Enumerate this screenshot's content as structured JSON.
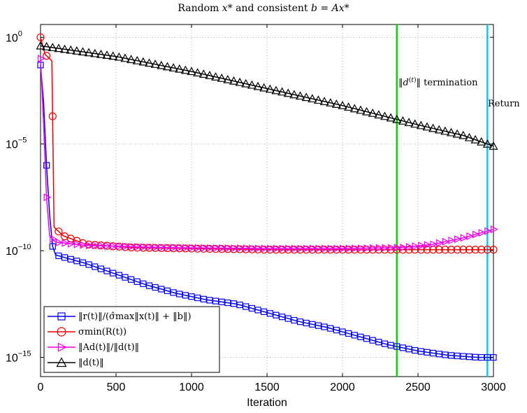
{
  "chart_data": {
    "type": "line",
    "title": "Random x* and consistent b = Ax*",
    "xlabel": "Iteration",
    "ylabel": "",
    "xlim": [
      0,
      3000
    ],
    "ylim_log10": [
      -15.9,
      0.6
    ],
    "y_scale": "log",
    "grid": true,
    "legend_position": "lower-left",
    "x_ticks": [
      "0",
      "500",
      "1000",
      "1500",
      "2000",
      "2500",
      "3000"
    ],
    "y_ticks": [
      {
        "base": "10",
        "exp": "0",
        "value_log10": 0
      },
      {
        "base": "10",
        "exp": "−5",
        "value_log10": -5
      },
      {
        "base": "10",
        "exp": "−10",
        "value_log10": -10
      },
      {
        "base": "10",
        "exp": "−15",
        "value_log10": -15
      }
    ],
    "vertical_lines": [
      {
        "x": 2360,
        "label": "‖d(t)‖ termination",
        "color": "#00dd00"
      },
      {
        "x": 2960,
        "label": "Return",
        "color": "#00ccee"
      }
    ],
    "series": [
      {
        "name": "‖r(t)‖/(σ̂max‖x(t)‖ + ‖b‖)",
        "color": "#0000ee",
        "marker": "square",
        "points_log10": [
          [
            0,
            -1.3
          ],
          [
            20,
            -3
          ],
          [
            40,
            -6
          ],
          [
            60,
            -8.3
          ],
          [
            80,
            -9.8
          ],
          [
            100,
            -10.2
          ],
          [
            300,
            -10.6
          ],
          [
            500,
            -11.1
          ],
          [
            700,
            -11.6
          ],
          [
            900,
            -12.0
          ],
          [
            1100,
            -12.3
          ],
          [
            1300,
            -12.5
          ],
          [
            1500,
            -12.9
          ],
          [
            1700,
            -13.3
          ],
          [
            1900,
            -13.6
          ],
          [
            2100,
            -14.0
          ],
          [
            2300,
            -14.4
          ],
          [
            2500,
            -14.7
          ],
          [
            2700,
            -14.9
          ],
          [
            2900,
            -15.0
          ],
          [
            3000,
            -15.0
          ]
        ]
      },
      {
        "name": "σmin(R(t))",
        "color": "#ee0000",
        "marker": "circle",
        "points_log10": [
          [
            0,
            0
          ],
          [
            30,
            -0.8
          ],
          [
            60,
            -1.0
          ],
          [
            75,
            -1.1
          ],
          [
            90,
            -8.9
          ],
          [
            150,
            -9.3
          ],
          [
            300,
            -9.7
          ],
          [
            600,
            -9.85
          ],
          [
            1000,
            -9.9
          ],
          [
            1500,
            -9.95
          ],
          [
            2000,
            -9.95
          ],
          [
            2500,
            -9.95
          ],
          [
            3000,
            -9.95
          ]
        ]
      },
      {
        "name": "‖Ad(t)‖/‖d(t)‖",
        "color": "#ee00ee",
        "marker": "triangle-right",
        "points_log10": [
          [
            0,
            -1
          ],
          [
            20,
            -4
          ],
          [
            40,
            -7.5
          ],
          [
            60,
            -9.3
          ],
          [
            100,
            -9.6
          ],
          [
            300,
            -9.75
          ],
          [
            800,
            -9.85
          ],
          [
            1500,
            -9.9
          ],
          [
            2000,
            -9.9
          ],
          [
            2400,
            -9.85
          ],
          [
            2600,
            -9.7
          ],
          [
            2800,
            -9.4
          ],
          [
            3000,
            -9.0
          ]
        ]
      },
      {
        "name": "‖d(t)‖",
        "color": "#000000",
        "marker": "triangle-up",
        "points_log10": [
          [
            0,
            -0.4
          ],
          [
            500,
            -0.9
          ],
          [
            1000,
            -1.6
          ],
          [
            1500,
            -2.4
          ],
          [
            2000,
            -3.2
          ],
          [
            2500,
            -4.1
          ],
          [
            2800,
            -4.6
          ],
          [
            3000,
            -5.1
          ]
        ]
      }
    ]
  }
}
